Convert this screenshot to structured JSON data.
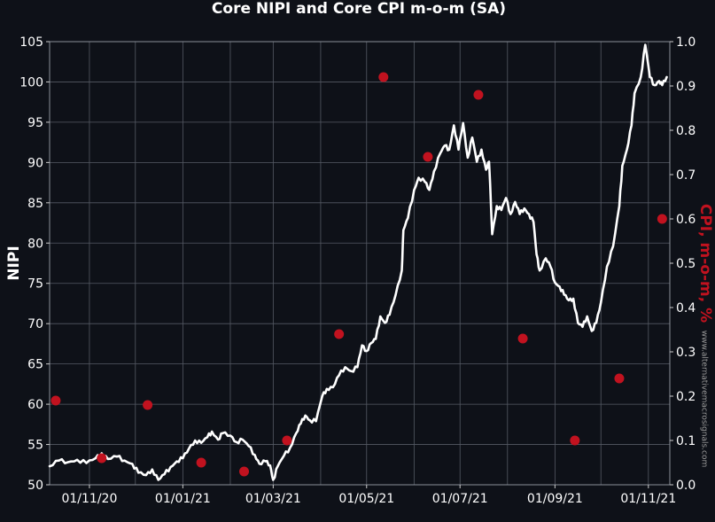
{
  "chart_data": {
    "type": "line",
    "title": "Core NIPI and Core CPI m-o-m (SA)",
    "ylabel": "NIPI",
    "ylabel_right": "CPI, m-o-m, %",
    "ylim": [
      50,
      105
    ],
    "ylim_right": [
      0.0,
      1.0
    ],
    "xlim": [
      "2020-10-06",
      "2021-11-15"
    ],
    "y_ticks": [
      50,
      55,
      60,
      65,
      70,
      75,
      80,
      85,
      90,
      95,
      100,
      105
    ],
    "y_ticks_right": [
      "0.0",
      "0.1",
      "0.2",
      "0.3",
      "0.4",
      "0.5",
      "0.6",
      "0.7",
      "0.8",
      "0.9",
      "1.0"
    ],
    "x_ticks": [
      {
        "date": "2020-11-01",
        "label": "01/11/20"
      },
      {
        "date": "2021-01-01",
        "label": "01/01/21"
      },
      {
        "date": "2021-03-01",
        "label": "01/03/21"
      },
      {
        "date": "2021-05-01",
        "label": "01/05/21"
      },
      {
        "date": "2021-07-01",
        "label": "01/07/21"
      },
      {
        "date": "2021-09-01",
        "label": "01/09/21"
      },
      {
        "date": "2021-11-01",
        "label": "01/11/21"
      }
    ],
    "x_minor_gridlines": [
      "2020-12-01",
      "2021-02-01",
      "2021-04-01",
      "2021-06-01",
      "2021-08-01",
      "2021-10-01"
    ],
    "grid": true,
    "series": [
      {
        "role": "nipi",
        "color": "#ffffff",
        "axis": "left",
        "points": [
          [
            "2020-10-06",
            52.3
          ],
          [
            "2020-10-12",
            53.0
          ],
          [
            "2020-10-18",
            52.8
          ],
          [
            "2020-10-24",
            53.1
          ],
          [
            "2020-10-30",
            52.7
          ],
          [
            "2020-11-05",
            53.3
          ],
          [
            "2020-11-09",
            53.9
          ],
          [
            "2020-11-13",
            53.2
          ],
          [
            "2020-11-19",
            53.5
          ],
          [
            "2020-11-24",
            53.0
          ],
          [
            "2020-11-29",
            52.6
          ],
          [
            "2020-12-03",
            51.5
          ],
          [
            "2020-12-08",
            51.2
          ],
          [
            "2020-12-12",
            51.9
          ],
          [
            "2020-12-16",
            50.6
          ],
          [
            "2020-12-20",
            51.3
          ],
          [
            "2020-12-24",
            52.2
          ],
          [
            "2020-12-28",
            52.9
          ],
          [
            "2021-01-01",
            53.3
          ],
          [
            "2021-01-05",
            54.5
          ],
          [
            "2021-01-09",
            55.5
          ],
          [
            "2021-01-13",
            55.2
          ],
          [
            "2021-01-17",
            55.9
          ],
          [
            "2021-01-20",
            56.6
          ],
          [
            "2021-01-24",
            55.6
          ],
          [
            "2021-01-27",
            56.4
          ],
          [
            "2021-02-01",
            56.1
          ],
          [
            "2021-02-05",
            55.3
          ],
          [
            "2021-02-09",
            55.6
          ],
          [
            "2021-02-13",
            54.8
          ],
          [
            "2021-02-17",
            53.7
          ],
          [
            "2021-02-20",
            52.6
          ],
          [
            "2021-02-24",
            52.9
          ],
          [
            "2021-02-27",
            52.4
          ],
          [
            "2021-03-01",
            50.6
          ],
          [
            "2021-03-04",
            52.3
          ],
          [
            "2021-03-08",
            53.6
          ],
          [
            "2021-03-12",
            54.6
          ],
          [
            "2021-03-16",
            56.4
          ],
          [
            "2021-03-19",
            57.6
          ],
          [
            "2021-03-22",
            58.6
          ],
          [
            "2021-03-25",
            58.0
          ],
          [
            "2021-03-29",
            57.9
          ],
          [
            "2021-04-02",
            61.0
          ],
          [
            "2021-04-05",
            61.9
          ],
          [
            "2021-04-09",
            62.1
          ],
          [
            "2021-04-13",
            63.6
          ],
          [
            "2021-04-17",
            64.6
          ],
          [
            "2021-04-21",
            64.1
          ],
          [
            "2021-04-25",
            64.6
          ],
          [
            "2021-04-28",
            67.3
          ],
          [
            "2021-05-01",
            66.6
          ],
          [
            "2021-05-04",
            67.6
          ],
          [
            "2021-05-07",
            68.1
          ],
          [
            "2021-05-10",
            70.9
          ],
          [
            "2021-05-13",
            70.1
          ],
          [
            "2021-05-16",
            71.1
          ],
          [
            "2021-05-20",
            73.6
          ],
          [
            "2021-05-24",
            76.6
          ],
          [
            "2021-05-25",
            81.6
          ],
          [
            "2021-05-28",
            83.1
          ],
          [
            "2021-06-01",
            86.6
          ],
          [
            "2021-06-04",
            88.1
          ],
          [
            "2021-06-08",
            87.6
          ],
          [
            "2021-06-11",
            86.6
          ],
          [
            "2021-06-14",
            88.9
          ],
          [
            "2021-06-18",
            91.1
          ],
          [
            "2021-06-21",
            92.1
          ],
          [
            "2021-06-24",
            91.6
          ],
          [
            "2021-06-27",
            94.6
          ],
          [
            "2021-06-30",
            91.6
          ],
          [
            "2021-07-03",
            94.9
          ],
          [
            "2021-07-06",
            90.6
          ],
          [
            "2021-07-09",
            93.1
          ],
          [
            "2021-07-12",
            90.1
          ],
          [
            "2021-07-15",
            91.6
          ],
          [
            "2021-07-18",
            89.1
          ],
          [
            "2021-07-20",
            90.1
          ],
          [
            "2021-07-22",
            81.1
          ],
          [
            "2021-07-25",
            84.6
          ],
          [
            "2021-07-28",
            84.1
          ],
          [
            "2021-07-31",
            85.6
          ],
          [
            "2021-08-03",
            83.6
          ],
          [
            "2021-08-06",
            85.1
          ],
          [
            "2021-08-09",
            83.6
          ],
          [
            "2021-08-12",
            84.3
          ],
          [
            "2021-08-15",
            83.6
          ],
          [
            "2021-08-18",
            82.6
          ],
          [
            "2021-08-20",
            78.6
          ],
          [
            "2021-08-22",
            76.6
          ],
          [
            "2021-08-26",
            78.1
          ],
          [
            "2021-08-29",
            77.1
          ],
          [
            "2021-09-01",
            75.1
          ],
          [
            "2021-09-04",
            74.6
          ],
          [
            "2021-09-07",
            73.6
          ],
          [
            "2021-09-10",
            72.9
          ],
          [
            "2021-09-13",
            73.1
          ],
          [
            "2021-09-16",
            70.1
          ],
          [
            "2021-09-19",
            69.6
          ],
          [
            "2021-09-22",
            70.9
          ],
          [
            "2021-09-25",
            69.1
          ],
          [
            "2021-09-28",
            70.1
          ],
          [
            "2021-10-01",
            72.6
          ],
          [
            "2021-10-05",
            77.1
          ],
          [
            "2021-10-09",
            79.6
          ],
          [
            "2021-10-13",
            84.6
          ],
          [
            "2021-10-15",
            89.6
          ],
          [
            "2021-10-18",
            91.6
          ],
          [
            "2021-10-21",
            94.6
          ],
          [
            "2021-10-23",
            98.6
          ],
          [
            "2021-10-27",
            100.6
          ],
          [
            "2021-10-30",
            104.6
          ],
          [
            "2021-11-02",
            100.6
          ],
          [
            "2021-11-05",
            99.6
          ],
          [
            "2021-11-08",
            100.1
          ],
          [
            "2021-11-10",
            99.6
          ],
          [
            "2021-11-13",
            100.6
          ]
        ]
      },
      {
        "role": "cpi",
        "color": "#c1121f",
        "axis": "right",
        "mark": "point",
        "points": [
          [
            "2020-10-10",
            0.19
          ],
          [
            "2020-11-09",
            0.06
          ],
          [
            "2020-12-09",
            0.18
          ],
          [
            "2021-01-13",
            0.05
          ],
          [
            "2021-02-10",
            0.03
          ],
          [
            "2021-03-10",
            0.1
          ],
          [
            "2021-04-13",
            0.34
          ],
          [
            "2021-05-12",
            0.92
          ],
          [
            "2021-06-10",
            0.74
          ],
          [
            "2021-07-13",
            0.88
          ],
          [
            "2021-08-11",
            0.33
          ],
          [
            "2021-09-14",
            0.1
          ],
          [
            "2021-10-13",
            0.24
          ],
          [
            "2021-11-10",
            0.6
          ]
        ]
      }
    ],
    "watermark": "www.alternativemacrosignals.com"
  },
  "colors": {
    "background": "#0e1118",
    "grid": "#555a64",
    "nipi_line": "#ffffff",
    "cpi_points": "#c1121f",
    "right_label": "#c1121f"
  }
}
